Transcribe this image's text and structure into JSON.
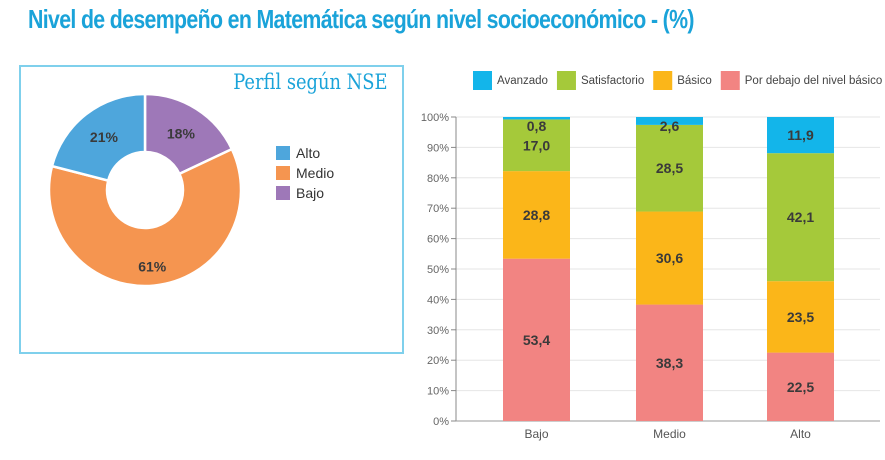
{
  "title": "Nivel de desempeño en Matemática según nivel socioeconómico - (%)",
  "chart_data": [
    {
      "type": "pie",
      "title": "Perfil según NSE",
      "donut": true,
      "slices": [
        {
          "label": "Bajo",
          "value": 18,
          "text": "18%",
          "color": "#9e78b8"
        },
        {
          "label": "Medio",
          "value": 61,
          "text": "61%",
          "color": "#f59550"
        },
        {
          "label": "Alto",
          "value": 21,
          "text": "21%",
          "color": "#4ea6dc"
        }
      ],
      "legend": [
        "Alto",
        "Medio",
        "Bajo"
      ],
      "legend_placement": "right"
    },
    {
      "type": "bar",
      "stacked": true,
      "categories": [
        "Bajo",
        "Medio",
        "Alto"
      ],
      "series": [
        {
          "name": "Por debajo del nivel básico",
          "color": "#f28482",
          "values": [
            53.4,
            38.3,
            22.5
          ],
          "labels": [
            "53,4",
            "38,3",
            "22,5"
          ]
        },
        {
          "name": "Básico",
          "color": "#fbb619",
          "values": [
            28.8,
            30.6,
            23.5
          ],
          "labels": [
            "28,8",
            "30,6",
            "23,5"
          ]
        },
        {
          "name": "Satisfactorio",
          "color": "#a5c93a",
          "values": [
            17.0,
            28.5,
            42.1
          ],
          "labels": [
            "17,0",
            "28,5",
            "42,1"
          ]
        },
        {
          "name": "Avanzado",
          "color": "#13b5ea",
          "values": [
            0.8,
            2.6,
            11.9
          ],
          "labels": [
            "0,8",
            "2,6",
            "11,9"
          ]
        }
      ],
      "legend_order": [
        "Avanzado",
        "Satisfactorio",
        "Básico",
        "Por debajo del nivel básico"
      ],
      "yticks": [
        "0%",
        "10%",
        "20%",
        "30%",
        "40%",
        "50%",
        "60%",
        "70%",
        "80%",
        "90%",
        "100%"
      ],
      "ylim": [
        0,
        100
      ],
      "legend_placement": "top",
      "grid": true
    }
  ]
}
